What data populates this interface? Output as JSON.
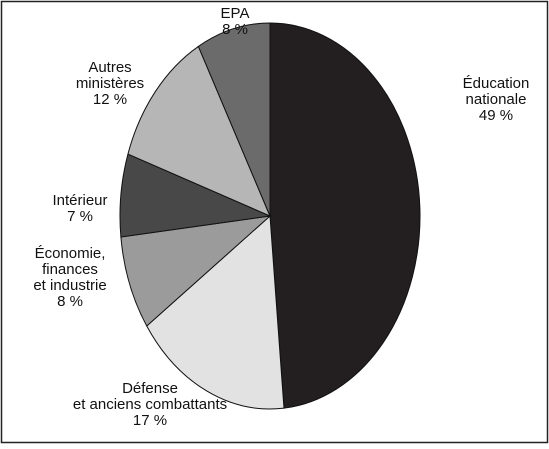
{
  "chart_data": {
    "type": "pie",
    "categories": [
      [
        "Éducation",
        "nationale"
      ],
      [
        "Défense",
        "et anciens combattants"
      ],
      [
        "Économie,",
        "finances",
        "et industrie"
      ],
      [
        "Intérieur"
      ],
      [
        "Autres",
        "ministères"
      ],
      [
        "EPA"
      ]
    ],
    "values": [
      49,
      17,
      8,
      7,
      12,
      8
    ],
    "value_labels": [
      "49 %",
      "17 %",
      "8 %",
      "7 %",
      "12 %",
      "8 %"
    ],
    "colors": [
      "#231f20",
      "#e2e2e2",
      "#9b9b9b",
      "#484848",
      "#b6b6b6",
      "#6b6b6b"
    ]
  }
}
